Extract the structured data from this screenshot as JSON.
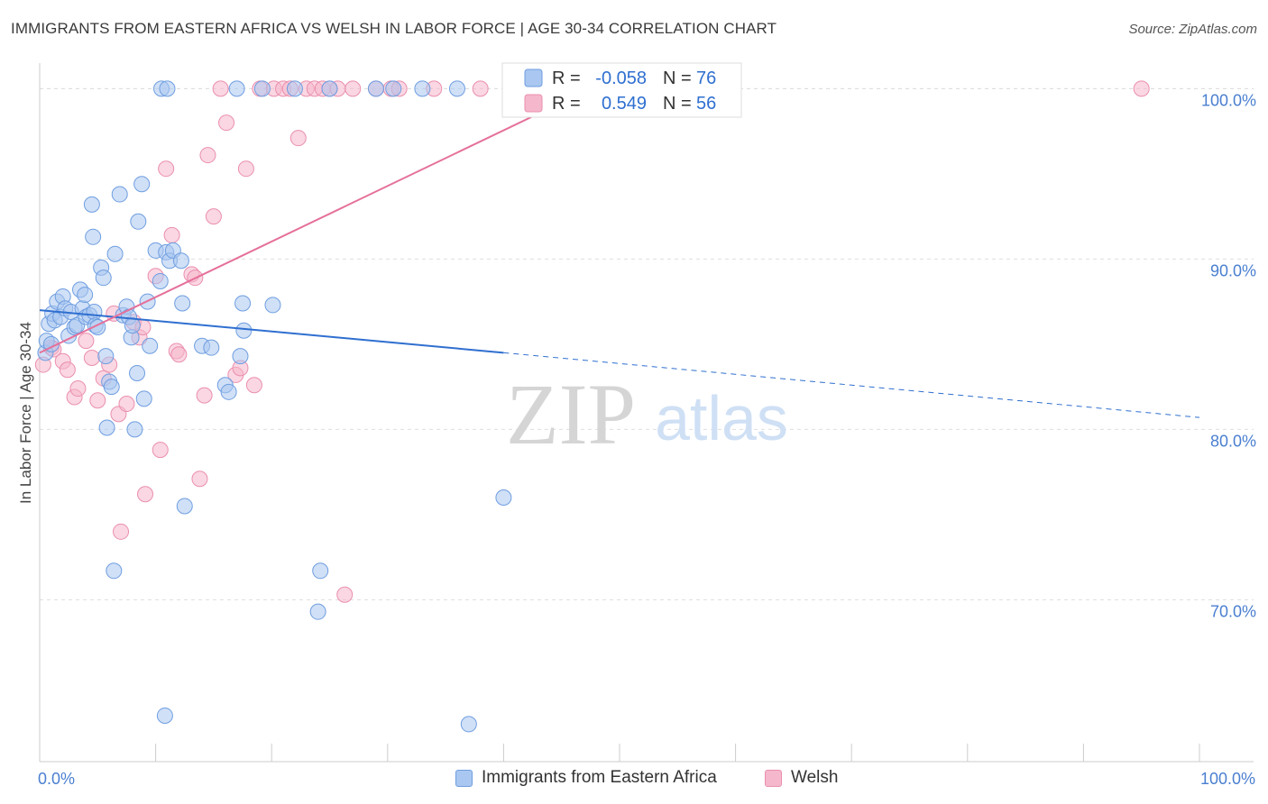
{
  "title": "IMMIGRANTS FROM EASTERN AFRICA VS WELSH IN LABOR FORCE | AGE 30-34 CORRELATION CHART",
  "source": "Source: ZipAtlas.com",
  "watermark": {
    "zip": "ZIP",
    "atlas": "atlas"
  },
  "colors": {
    "blue_fill": "#a9c7f0",
    "blue_stroke": "#6f9ee0",
    "blue_line": "#2f6fd0",
    "pink_fill": "#f5b7cb",
    "pink_stroke": "#ea8fae",
    "pink_line": "#e5709a",
    "tick_text": "#4a7fd0",
    "grid": "#dddddd"
  },
  "legend": {
    "rows": [
      {
        "r_label": "R =",
        "r_value": "-0.058",
        "n_label": "N =",
        "n_value": "76"
      },
      {
        "r_label": "R =",
        "r_value": "0.549",
        "n_label": "N =",
        "n_value": "56"
      }
    ]
  },
  "chart_data": {
    "type": "scatter",
    "title": "IMMIGRANTS FROM EASTERN AFRICA VS WELSH IN LABOR FORCE | AGE 30-34 CORRELATION CHART",
    "xlabel": "",
    "ylabel": "In Labor Force | Age 30-34",
    "xlim": [
      0,
      100
    ],
    "ylim": [
      60.5,
      101.5
    ],
    "x_ticks": [
      {
        "value": 0,
        "label": "0.0%"
      },
      {
        "value": 100,
        "label": "100.0%"
      }
    ],
    "y_ticks": [
      {
        "value": 70,
        "label": "70.0%"
      },
      {
        "value": 80,
        "label": "80.0%"
      },
      {
        "value": 90,
        "label": "90.0%"
      },
      {
        "value": 100,
        "label": "100.0%"
      }
    ],
    "series": [
      {
        "name": "Immigrants from Eastern Africa",
        "color": "#a9c7f0",
        "r": -0.058,
        "n": 76,
        "trend": {
          "x0": 0,
          "y0": 87.0,
          "x1": 40,
          "y1": 84.5,
          "dashed_to_x": 100,
          "dashed_to_y": 80.7
        },
        "points": [
          [
            0.5,
            84.5
          ],
          [
            0.6,
            85.2
          ],
          [
            0.8,
            86.2
          ],
          [
            1.0,
            85.0
          ],
          [
            1.1,
            86.8
          ],
          [
            1.3,
            86.4
          ],
          [
            1.5,
            87.5
          ],
          [
            1.8,
            86.6
          ],
          [
            2.0,
            87.8
          ],
          [
            2.2,
            87.1
          ],
          [
            2.5,
            85.5
          ],
          [
            2.7,
            86.9
          ],
          [
            3.0,
            86.0
          ],
          [
            3.2,
            86.1
          ],
          [
            3.5,
            88.2
          ],
          [
            3.7,
            87.1
          ],
          [
            3.9,
            87.9
          ],
          [
            4.0,
            86.6
          ],
          [
            4.3,
            86.7
          ],
          [
            4.5,
            93.2
          ],
          [
            4.6,
            91.3
          ],
          [
            4.7,
            86.9
          ],
          [
            4.8,
            86.1
          ],
          [
            5.0,
            86.0
          ],
          [
            5.3,
            89.5
          ],
          [
            5.5,
            88.9
          ],
          [
            5.7,
            84.3
          ],
          [
            6.0,
            82.8
          ],
          [
            6.2,
            82.5
          ],
          [
            6.5,
            90.3
          ],
          [
            6.9,
            93.8
          ],
          [
            7.2,
            86.7
          ],
          [
            7.5,
            87.2
          ],
          [
            7.7,
            86.6
          ],
          [
            7.9,
            85.4
          ],
          [
            8.0,
            86.1
          ],
          [
            8.2,
            80.0
          ],
          [
            8.4,
            83.3
          ],
          [
            8.5,
            92.2
          ],
          [
            8.8,
            94.4
          ],
          [
            9.0,
            81.8
          ],
          [
            9.3,
            87.5
          ],
          [
            9.5,
            84.9
          ],
          [
            6.4,
            71.7
          ],
          [
            10.0,
            90.5
          ],
          [
            10.4,
            88.7
          ],
          [
            10.9,
            90.4
          ],
          [
            11.2,
            89.9
          ],
          [
            11.5,
            90.5
          ],
          [
            12.2,
            89.9
          ],
          [
            12.5,
            75.5
          ],
          [
            10.5,
            100.0
          ],
          [
            11.0,
            100.0
          ],
          [
            10.8,
            63.2
          ],
          [
            14.0,
            84.9
          ],
          [
            14.8,
            84.8
          ],
          [
            16.0,
            82.6
          ],
          [
            16.3,
            82.2
          ],
          [
            17.0,
            100.0
          ],
          [
            17.3,
            84.3
          ],
          [
            17.5,
            87.4
          ],
          [
            17.6,
            85.8
          ],
          [
            19.2,
            100.0
          ],
          [
            20.1,
            87.3
          ],
          [
            22.0,
            100.0
          ],
          [
            24.2,
            71.7
          ],
          [
            24.0,
            69.3
          ],
          [
            25.0,
            100.0
          ],
          [
            29.0,
            100.0
          ],
          [
            30.5,
            100.0
          ],
          [
            33.0,
            100.0
          ],
          [
            36.0,
            100.0
          ],
          [
            37.0,
            62.7
          ],
          [
            40.0,
            76.0
          ],
          [
            12.3,
            87.4
          ],
          [
            5.8,
            80.1
          ]
        ]
      },
      {
        "name": "Welsh",
        "color": "#f5b7cb",
        "r": 0.549,
        "n": 56,
        "trend": {
          "x0": 0,
          "y0": 84.5,
          "x1": 47.5,
          "y1": 100.0
        },
        "points": [
          [
            0.3,
            83.8
          ],
          [
            1.0,
            84.8
          ],
          [
            1.2,
            84.7
          ],
          [
            2.0,
            84.0
          ],
          [
            2.4,
            83.5
          ],
          [
            3.0,
            81.9
          ],
          [
            3.3,
            82.4
          ],
          [
            4.0,
            85.2
          ],
          [
            4.5,
            84.2
          ],
          [
            5.0,
            81.7
          ],
          [
            5.5,
            83.0
          ],
          [
            6.0,
            83.8
          ],
          [
            6.4,
            86.8
          ],
          [
            6.8,
            80.9
          ],
          [
            7.0,
            74.0
          ],
          [
            7.5,
            81.5
          ],
          [
            8.1,
            86.3
          ],
          [
            8.6,
            85.4
          ],
          [
            8.9,
            86.0
          ],
          [
            9.1,
            76.2
          ],
          [
            10.0,
            89.0
          ],
          [
            10.4,
            78.8
          ],
          [
            10.9,
            95.3
          ],
          [
            11.4,
            91.4
          ],
          [
            11.8,
            84.6
          ],
          [
            12.0,
            84.4
          ],
          [
            13.1,
            89.1
          ],
          [
            13.4,
            88.9
          ],
          [
            13.8,
            77.1
          ],
          [
            14.2,
            82.0
          ],
          [
            14.5,
            96.1
          ],
          [
            15.0,
            92.5
          ],
          [
            15.6,
            100.0
          ],
          [
            16.1,
            98.0
          ],
          [
            16.9,
            83.2
          ],
          [
            17.3,
            83.6
          ],
          [
            17.8,
            95.3
          ],
          [
            18.5,
            82.6
          ],
          [
            19.0,
            100.0
          ],
          [
            20.2,
            100.0
          ],
          [
            21.0,
            100.0
          ],
          [
            21.6,
            100.0
          ],
          [
            22.3,
            97.1
          ],
          [
            23.0,
            100.0
          ],
          [
            23.7,
            100.0
          ],
          [
            24.4,
            100.0
          ],
          [
            25.0,
            100.0
          ],
          [
            25.7,
            100.0
          ],
          [
            26.3,
            70.3
          ],
          [
            27.0,
            100.0
          ],
          [
            29.0,
            100.0
          ],
          [
            30.3,
            100.0
          ],
          [
            31.0,
            100.0
          ],
          [
            34.0,
            100.0
          ],
          [
            38.0,
            100.0
          ],
          [
            95.0,
            100.0
          ]
        ]
      }
    ]
  },
  "bottom_legend": [
    {
      "label": "Immigrants from Eastern Africa"
    },
    {
      "label": "Welsh"
    }
  ]
}
